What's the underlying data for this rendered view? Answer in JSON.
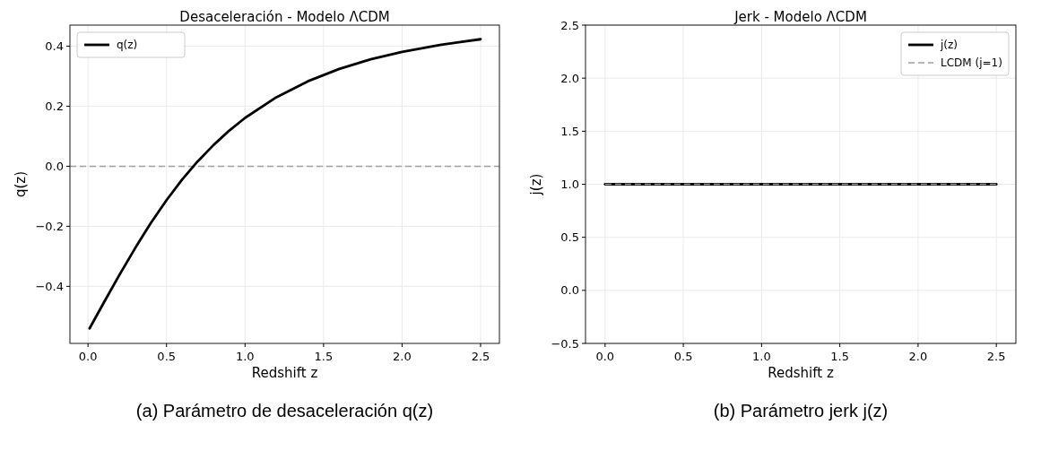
{
  "chart_data": [
    {
      "type": "line",
      "title": "Desaceleración - Modelo ΛCDM",
      "xlabel": "Redshift z",
      "ylabel": "q(z)",
      "annotations": [
        "(a) Parámetro de desaceleración q(z)"
      ],
      "x": [
        0.01,
        0.1,
        0.2,
        0.3,
        0.4,
        0.5,
        0.6,
        0.7,
        0.8,
        0.9,
        1.0,
        1.2,
        1.4,
        1.6,
        1.8,
        2.0,
        2.25,
        2.5
      ],
      "series": [
        {
          "name": "q(z)",
          "color": "#000000",
          "line_style": "solid",
          "values": [
            -0.54,
            -0.455,
            -0.362,
            -0.273,
            -0.189,
            -0.113,
            -0.044,
            0.017,
            0.071,
            0.119,
            0.161,
            0.23,
            0.283,
            0.324,
            0.356,
            0.381,
            0.405,
            0.423
          ]
        }
      ],
      "ref_lines": [
        {
          "axis": "y",
          "value": 0,
          "color": "#a0a0a0",
          "line_style": "dashed"
        }
      ],
      "xlim": [
        -0.115,
        2.62
      ],
      "ylim": [
        -0.59,
        0.47
      ],
      "xticks": [
        {
          "value": 0,
          "label": "0.0"
        },
        {
          "value": 0.5,
          "label": "0.5"
        },
        {
          "value": 1,
          "label": "1.0"
        },
        {
          "value": 1.5,
          "label": "1.5"
        },
        {
          "value": 2,
          "label": "2.0"
        },
        {
          "value": 2.5,
          "label": "2.5"
        }
      ],
      "yticks": [
        {
          "value": -0.4,
          "label": "−0.4"
        },
        {
          "value": -0.2,
          "label": "−0.2"
        },
        {
          "value": 0,
          "label": "0.0"
        },
        {
          "value": 0.2,
          "label": "0.2"
        },
        {
          "value": 0.4,
          "label": "0.4"
        }
      ],
      "grid": true,
      "legend": "top left",
      "marker": "none"
    },
    {
      "type": "line",
      "title": "Jerk - Modelo ΛCDM",
      "xlabel": "Redshift z",
      "ylabel": "j(z)",
      "annotations": [
        "(b) Parámetro jerk j(z)"
      ],
      "x": [
        0,
        2.5
      ],
      "series": [
        {
          "name": "j(z)",
          "color": "#000000",
          "line_style": "solid",
          "values": [
            1,
            1
          ]
        },
        {
          "name": "LCDM (j=1)",
          "color": "#a0a0a0",
          "line_style": "dashed",
          "values": [
            1,
            1
          ]
        }
      ],
      "xlim": [
        -0.125,
        2.625
      ],
      "ylim": [
        -0.5,
        2.5
      ],
      "xticks": [
        {
          "value": 0,
          "label": "0.0"
        },
        {
          "value": 0.5,
          "label": "0.5"
        },
        {
          "value": 1,
          "label": "1.0"
        },
        {
          "value": 1.5,
          "label": "1.5"
        },
        {
          "value": 2,
          "label": "2.0"
        },
        {
          "value": 2.5,
          "label": "2.5"
        }
      ],
      "yticks": [
        {
          "value": -0.5,
          "label": "−0.5"
        },
        {
          "value": 0,
          "label": "0.0"
        },
        {
          "value": 0.5,
          "label": "0.5"
        },
        {
          "value": 1,
          "label": "1.0"
        },
        {
          "value": 1.5,
          "label": "1.5"
        },
        {
          "value": 2,
          "label": "2.0"
        },
        {
          "value": 2.5,
          "label": "2.5"
        }
      ],
      "grid": true,
      "legend": "top right",
      "marker": "none"
    }
  ]
}
